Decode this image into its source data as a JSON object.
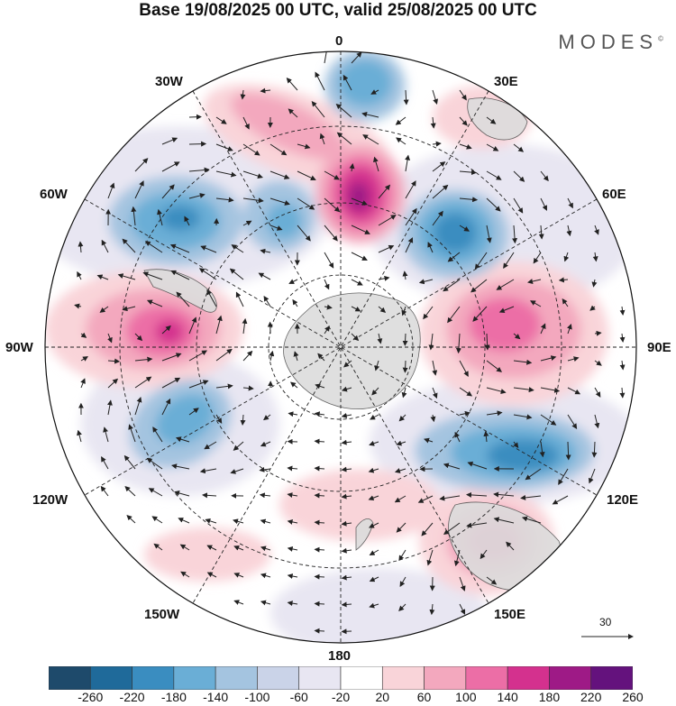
{
  "header": {
    "title": "Base 19/08/2025 00 UTC, valid 25/08/2025 00 UTC",
    "brand": "MODES",
    "brand_mark": "©"
  },
  "map": {
    "projection": "south polar stereographic",
    "labels": {
      "lon_0": "0",
      "lon_30e": "30E",
      "lon_60e": "60E",
      "lon_90e": "90E",
      "lon_120e": "120E",
      "lon_150e": "150E",
      "lon_180": "180",
      "lon_150w": "150W",
      "lon_120w": "120W",
      "lon_90w": "90W",
      "lon_60w": "60W",
      "lon_30w": "30W"
    },
    "vector_scale_label": "30",
    "colors": {
      "land": "#dcdcdc",
      "grid": "#222222"
    }
  },
  "colorbar": {
    "ticks": [
      "-260",
      "-220",
      "-180",
      "-140",
      "-100",
      "-60",
      "-20",
      "20",
      "60",
      "100",
      "140",
      "180",
      "220",
      "260"
    ],
    "colors": [
      "#1e4a6b",
      "#1f6a9a",
      "#3a8dc0",
      "#6aaed6",
      "#a4c4e0",
      "#cad3e8",
      "#e8e6f2",
      "#ffffff",
      "#f9d4d9",
      "#f3a8be",
      "#ec6ea6",
      "#d4318e",
      "#9e1a86",
      "#64127d"
    ]
  }
}
